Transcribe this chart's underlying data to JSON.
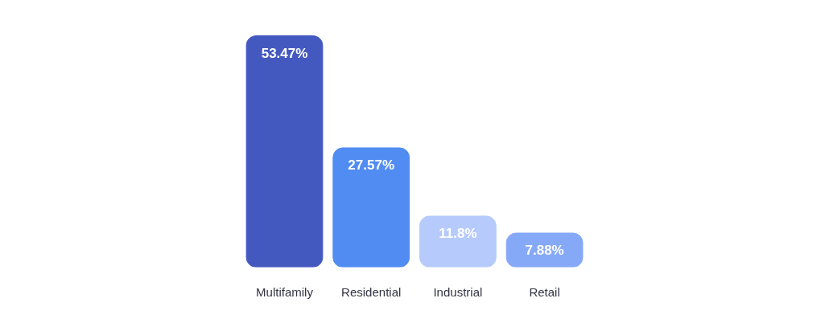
{
  "chart_data": {
    "type": "bar",
    "categories": [
      "Multifamily",
      "Residential",
      "Industrial",
      "Retail"
    ],
    "values": [
      53.47,
      27.57,
      11.8,
      7.88
    ],
    "colors": [
      "#4459c0",
      "#508cf2",
      "#b6cbfb",
      "#86a9f7"
    ],
    "value_labels": [
      "53.47%",
      "27.57%",
      "11.8%",
      "7.88%"
    ],
    "orientation": "vertical"
  }
}
